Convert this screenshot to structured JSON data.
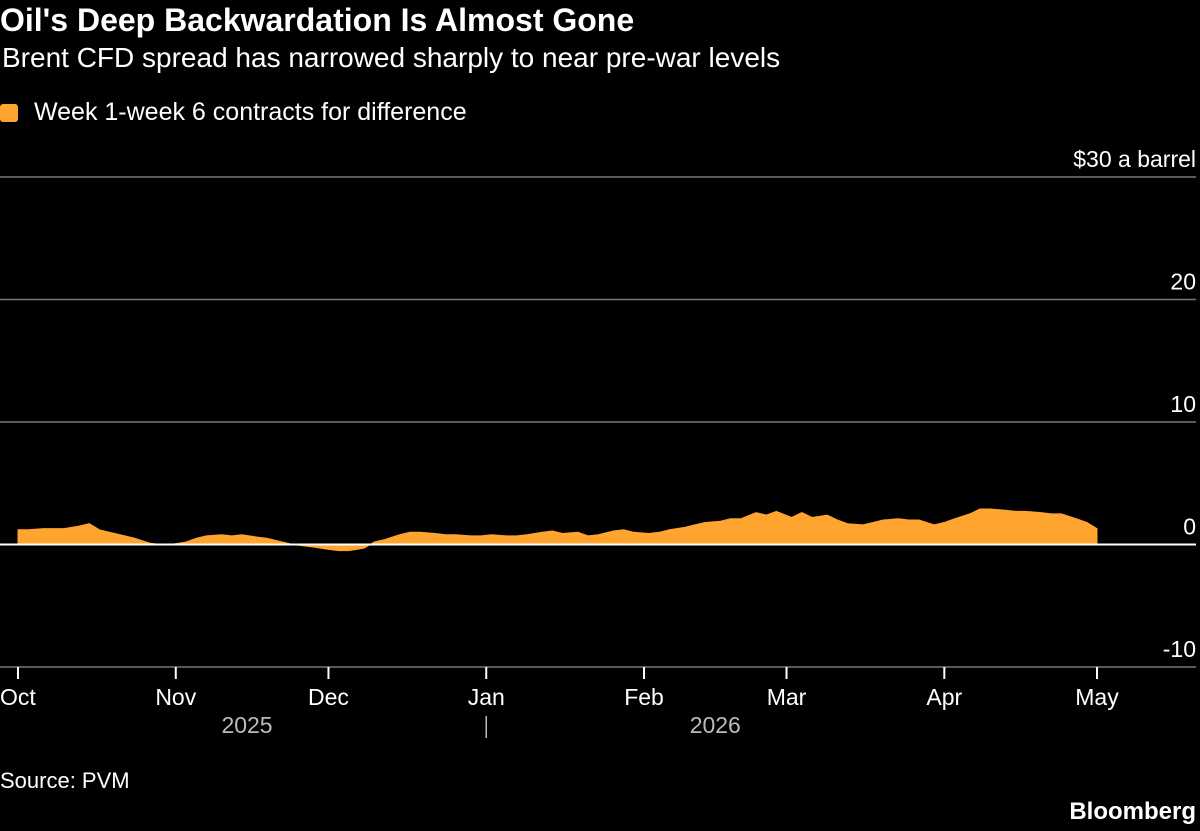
{
  "title": "Oil's Deep Backwardation Is Almost Gone",
  "subtitle": "Brent CFD spread has narrowed sharply to near pre-war levels",
  "source": "Source: PVM",
  "brand": "Bloomberg",
  "colors": {
    "series": "#FFA42E",
    "background": "#000000",
    "grid": "#777777",
    "text": "#FFFFFF",
    "year_label": "#BBBBBB"
  },
  "chart_data": {
    "type": "area",
    "title": "Oil's Deep Backwardation Is Almost Gone",
    "subtitle": "Brent CFD spread has narrowed sharply to near pre-war levels",
    "legend": [
      "Week 1-week 6 contracts for difference"
    ],
    "legend_position": "top-left",
    "grid": true,
    "ylim": [
      -10,
      30
    ],
    "y_ticks": [
      {
        "value": 30,
        "label": "$30 a barrel"
      },
      {
        "value": 20,
        "label": "20"
      },
      {
        "value": 10,
        "label": "10"
      },
      {
        "value": 0,
        "label": "0"
      },
      {
        "value": -10,
        "label": "-10"
      }
    ],
    "x_ticks": [
      {
        "date": "2025-10-01",
        "label": "Oct"
      },
      {
        "date": "2025-11-01",
        "label": "Nov"
      },
      {
        "date": "2025-12-01",
        "label": "Dec"
      },
      {
        "date": "2026-01-01",
        "label": "Jan"
      },
      {
        "date": "2026-02-01",
        "label": "Feb"
      },
      {
        "date": "2026-03-01",
        "label": "Mar"
      },
      {
        "date": "2026-04-01",
        "label": "Apr"
      },
      {
        "date": "2026-05-01",
        "label": "May"
      }
    ],
    "year_labels": [
      {
        "label": "2025",
        "position": "2025-11-15"
      },
      {
        "label": "2026",
        "position": "2026-02-15"
      }
    ],
    "year_divider": "2026-01-01",
    "series": [
      {
        "name": "Week 1-week 6 contracts for difference",
        "points": [
          [
            "2025-10-01",
            1.2
          ],
          [
            "2025-10-03",
            1.2
          ],
          [
            "2025-10-06",
            1.3
          ],
          [
            "2025-10-08",
            1.3
          ],
          [
            "2025-10-10",
            1.3
          ],
          [
            "2025-10-13",
            1.5
          ],
          [
            "2025-10-15",
            1.7
          ],
          [
            "2025-10-17",
            1.2
          ],
          [
            "2025-10-20",
            0.9
          ],
          [
            "2025-10-22",
            0.7
          ],
          [
            "2025-10-24",
            0.5
          ],
          [
            "2025-10-27",
            0.1
          ],
          [
            "2025-10-29",
            0.0
          ],
          [
            "2025-10-31",
            0.0
          ],
          [
            "2025-11-03",
            0.2
          ],
          [
            "2025-11-05",
            0.5
          ],
          [
            "2025-11-07",
            0.7
          ],
          [
            "2025-11-10",
            0.8
          ],
          [
            "2025-11-12",
            0.7
          ],
          [
            "2025-11-14",
            0.8
          ],
          [
            "2025-11-17",
            0.6
          ],
          [
            "2025-11-19",
            0.5
          ],
          [
            "2025-11-21",
            0.3
          ],
          [
            "2025-11-24",
            0.0
          ],
          [
            "2025-11-26",
            -0.1
          ],
          [
            "2025-11-28",
            -0.2
          ],
          [
            "2025-12-01",
            -0.4
          ],
          [
            "2025-12-03",
            -0.5
          ],
          [
            "2025-12-05",
            -0.5
          ],
          [
            "2025-12-08",
            -0.3
          ],
          [
            "2025-12-10",
            0.2
          ],
          [
            "2025-12-12",
            0.4
          ],
          [
            "2025-12-15",
            0.8
          ],
          [
            "2025-12-17",
            1.0
          ],
          [
            "2025-12-19",
            1.0
          ],
          [
            "2025-12-22",
            0.9
          ],
          [
            "2025-12-24",
            0.8
          ],
          [
            "2025-12-26",
            0.8
          ],
          [
            "2025-12-29",
            0.7
          ],
          [
            "2025-12-31",
            0.7
          ],
          [
            "2026-01-02",
            0.8
          ],
          [
            "2026-01-05",
            0.7
          ],
          [
            "2026-01-07",
            0.7
          ],
          [
            "2026-01-09",
            0.8
          ],
          [
            "2026-01-12",
            1.0
          ],
          [
            "2026-01-14",
            1.1
          ],
          [
            "2026-01-16",
            0.9
          ],
          [
            "2026-01-19",
            1.0
          ],
          [
            "2026-01-21",
            0.7
          ],
          [
            "2026-01-23",
            0.8
          ],
          [
            "2026-01-26",
            1.1
          ],
          [
            "2026-01-28",
            1.2
          ],
          [
            "2026-01-30",
            1.0
          ],
          [
            "2026-02-02",
            0.9
          ],
          [
            "2026-02-04",
            1.0
          ],
          [
            "2026-02-06",
            1.2
          ],
          [
            "2026-02-09",
            1.4
          ],
          [
            "2026-02-11",
            1.6
          ],
          [
            "2026-02-13",
            1.8
          ],
          [
            "2026-02-16",
            1.9
          ],
          [
            "2026-02-18",
            2.1
          ],
          [
            "2026-02-20",
            2.1
          ],
          [
            "2026-02-23",
            2.6
          ],
          [
            "2026-02-25",
            2.4
          ],
          [
            "2026-02-27",
            2.7
          ],
          [
            "2026-03-02",
            2.2
          ],
          [
            "2026-03-04",
            2.6
          ],
          [
            "2026-03-06",
            2.2
          ],
          [
            "2026-03-09",
            2.4
          ],
          [
            "2026-03-11",
            2.0
          ],
          [
            "2026-03-13",
            1.7
          ],
          [
            "2026-03-16",
            1.6
          ],
          [
            "2026-03-18",
            1.8
          ],
          [
            "2026-03-20",
            2.0
          ],
          [
            "2026-03-23",
            2.1
          ],
          [
            "2026-03-25",
            2.0
          ],
          [
            "2026-03-27",
            2.0
          ],
          [
            "2026-03-30",
            1.6
          ],
          [
            "2026-04-01",
            1.8
          ],
          [
            "2026-04-03",
            2.1
          ],
          [
            "2026-04-06",
            2.5
          ],
          [
            "2026-04-08",
            2.9
          ],
          [
            "2026-04-10",
            2.9
          ],
          [
            "2026-04-13",
            2.8
          ],
          [
            "2026-04-15",
            2.7
          ],
          [
            "2026-04-17",
            2.7
          ],
          [
            "2026-04-20",
            2.6
          ],
          [
            "2026-04-22",
            2.5
          ],
          [
            "2026-04-24",
            2.5
          ],
          [
            "2026-04-27",
            2.1
          ],
          [
            "2026-04-29",
            1.8
          ],
          [
            "2026-05-01",
            1.3
          ]
        ]
      }
    ]
  }
}
